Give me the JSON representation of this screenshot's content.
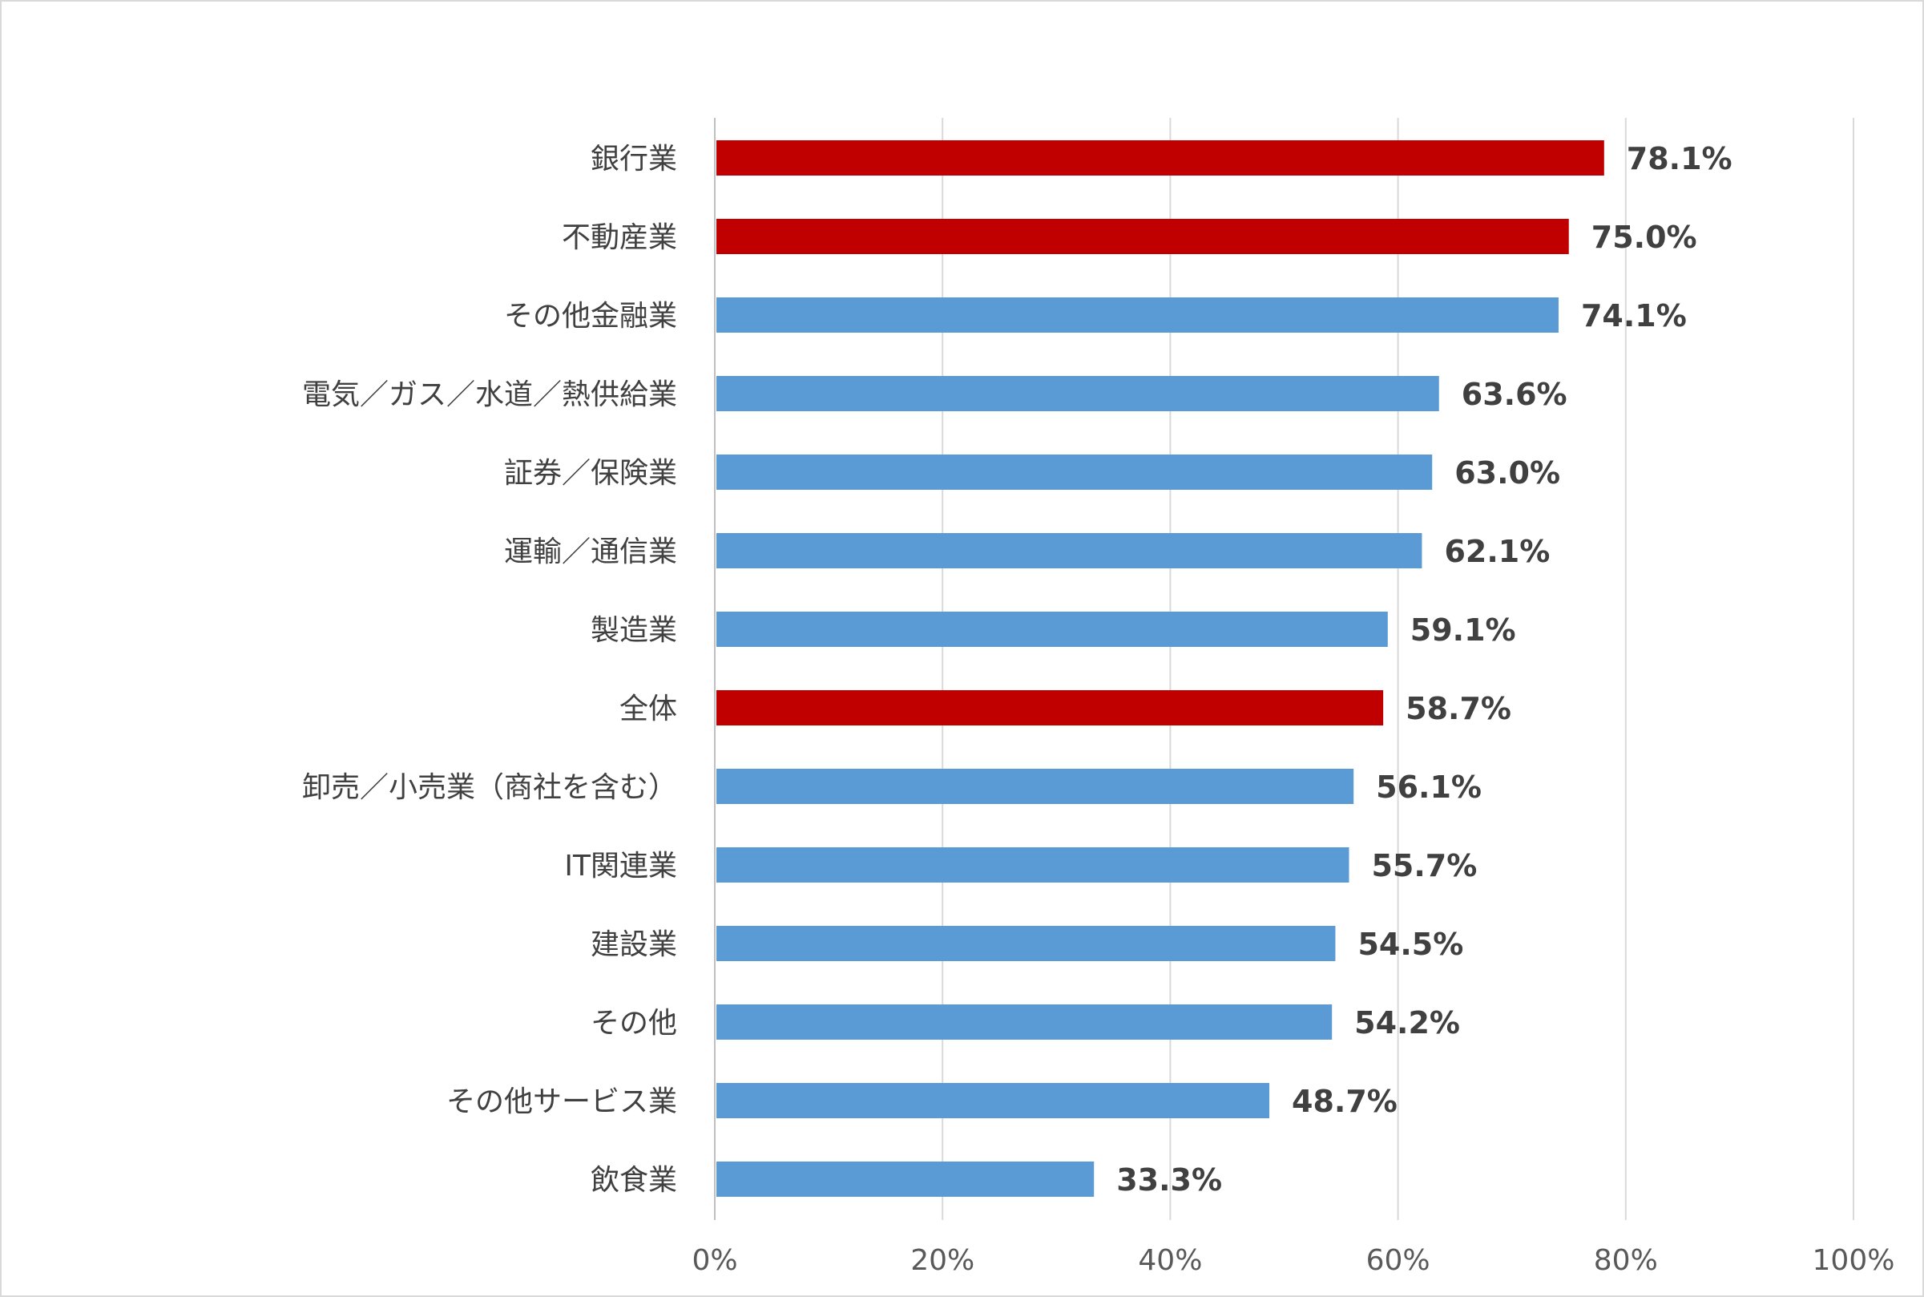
{
  "chart_data": {
    "type": "bar",
    "orientation": "horizontal",
    "categories": [
      "銀行業",
      "不動産業",
      "その他金融業",
      "電気／ガス／水道／熱供給業",
      "証券／保険業",
      "運輸／通信業",
      "製造業",
      "全体",
      "卸売／小売業（商社を含む）",
      "IT関連業",
      "建設業",
      "その他",
      "その他サービス業",
      "飲食業"
    ],
    "values": [
      78.1,
      75.0,
      74.1,
      63.6,
      63.0,
      62.1,
      59.1,
      58.7,
      56.1,
      55.7,
      54.5,
      54.2,
      48.7,
      33.3
    ],
    "data_labels": [
      "78.1%",
      "75.0%",
      "74.1%",
      "63.6%",
      "63.0%",
      "62.1%",
      "59.1%",
      "58.7%",
      "56.1%",
      "55.7%",
      "54.5%",
      "54.2%",
      "48.7%",
      "33.3%"
    ],
    "highlighted": [
      true,
      true,
      false,
      false,
      false,
      false,
      false,
      true,
      false,
      false,
      false,
      false,
      false,
      false
    ],
    "x_ticks": [
      "0%",
      "20%",
      "40%",
      "60%",
      "80%",
      "100%"
    ],
    "xlim": [
      0,
      100
    ],
    "grid": "vertical",
    "legend": "none",
    "title": "",
    "xlabel": "",
    "ylabel": ""
  },
  "colors": {
    "default_bar": "#5b9bd5",
    "highlight_bar": "#c00000",
    "gridline": "#d9d9d9",
    "axis_line": "#bfbfbf"
  }
}
